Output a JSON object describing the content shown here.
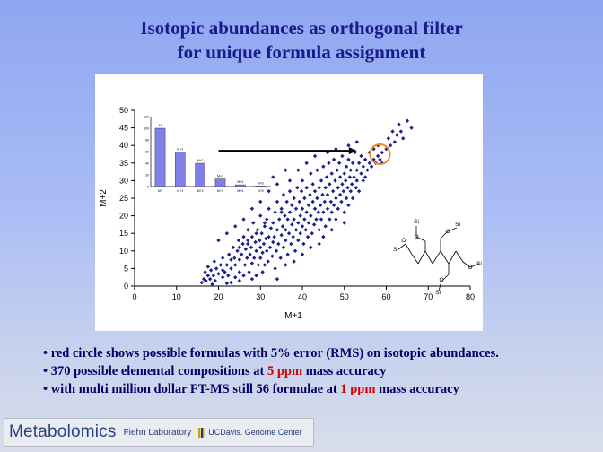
{
  "title": {
    "line1": "Isotopic abundances as orthogonal filter",
    "line2": "for unique formula assignment"
  },
  "chart_data": [
    {
      "type": "scatter",
      "xlabel": "M+1",
      "ylabel": "M+2",
      "xlim": [
        0,
        80
      ],
      "ylim": [
        0,
        50
      ],
      "xticks": [
        0,
        10,
        20,
        30,
        40,
        50,
        60,
        70,
        80
      ],
      "yticks": [
        0,
        5,
        10,
        15,
        20,
        25,
        30,
        35,
        40,
        45,
        50
      ],
      "grid": false,
      "marker_color": "#1f1f8c",
      "highlight": {
        "shape": "circle",
        "x": 58.5,
        "y": 37.5,
        "color": "#f08a24"
      },
      "arrow": {
        "from": [
          20,
          38.5
        ],
        "to": [
          53,
          38.5
        ],
        "color": "#000000"
      },
      "series": [
        {
          "values": [
            [
              16,
              1
            ],
            [
              16.5,
              2
            ],
            [
              17,
              1.5
            ],
            [
              17.5,
              3
            ],
            [
              18,
              2
            ],
            [
              16.8,
              4
            ],
            [
              17.5,
              5.5
            ],
            [
              18.2,
              4.5
            ],
            [
              18.8,
              3
            ],
            [
              19.2,
              1.5
            ],
            [
              19.5,
              5
            ],
            [
              20,
              3.5
            ],
            [
              20.5,
              6
            ],
            [
              21,
              2.5
            ],
            [
              21,
              8
            ],
            [
              21.5,
              4
            ],
            [
              22,
              6
            ],
            [
              22.3,
              3
            ],
            [
              22.5,
              9
            ],
            [
              23,
              5
            ],
            [
              23,
              7.5
            ],
            [
              23.5,
              11
            ],
            [
              23.8,
              8
            ],
            [
              24,
              2.5
            ],
            [
              24,
              6
            ],
            [
              24.5,
              10
            ],
            [
              24.8,
              13
            ],
            [
              25,
              4
            ],
            [
              25,
              7.5
            ],
            [
              25.5,
              9
            ],
            [
              25.8,
              12
            ],
            [
              26,
              3
            ],
            [
              26,
              14
            ],
            [
              26.3,
              6
            ],
            [
              26.5,
              10.5
            ],
            [
              26.8,
              8
            ],
            [
              27,
              12
            ],
            [
              27,
              16
            ],
            [
              27.3,
              4
            ],
            [
              27.5,
              9
            ],
            [
              27.8,
              11
            ],
            [
              28,
              6.5
            ],
            [
              28,
              14
            ],
            [
              28.3,
              18
            ],
            [
              28.5,
              8
            ],
            [
              28.8,
              12.5
            ],
            [
              29,
              3
            ],
            [
              29,
              10
            ],
            [
              29.3,
              16
            ],
            [
              29.5,
              6
            ],
            [
              29.8,
              13
            ],
            [
              30,
              8
            ],
            [
              30,
              11
            ],
            [
              30,
              20
            ],
            [
              30.3,
              15
            ],
            [
              30.5,
              4
            ],
            [
              30.5,
              9.5
            ],
            [
              30.8,
              12
            ],
            [
              31,
              6
            ],
            [
              31,
              17
            ],
            [
              31.3,
              13.5
            ],
            [
              31.5,
              10
            ],
            [
              31.5,
              19
            ],
            [
              31.8,
              7
            ],
            [
              32,
              14
            ],
            [
              32,
              22
            ],
            [
              32.3,
              11
            ],
            [
              32.5,
              16.5
            ],
            [
              32.8,
              8.5
            ],
            [
              33,
              12.5
            ],
            [
              33,
              18
            ],
            [
              33.3,
              14
            ],
            [
              33.5,
              21
            ],
            [
              33.5,
              5
            ],
            [
              33.8,
              10
            ],
            [
              34,
              16
            ],
            [
              34,
              24
            ],
            [
              34.3,
              12
            ],
            [
              34.5,
              19
            ],
            [
              34.8,
              8
            ],
            [
              35,
              14.5
            ],
            [
              35,
              22
            ],
            [
              35.3,
              17
            ],
            [
              35.5,
              11
            ],
            [
              35.5,
              26
            ],
            [
              35.8,
              20
            ],
            [
              36,
              13
            ],
            [
              36,
              16
            ],
            [
              36.3,
              24
            ],
            [
              36.5,
              9
            ],
            [
              36.5,
              19
            ],
            [
              36.8,
              15
            ],
            [
              37,
              21
            ],
            [
              37,
              27
            ],
            [
              37.3,
              12
            ],
            [
              37.5,
              17.5
            ],
            [
              37.5,
              23
            ],
            [
              37.8,
              14
            ],
            [
              38,
              19
            ],
            [
              38,
              25
            ],
            [
              38.3,
              10
            ],
            [
              38.5,
              16
            ],
            [
              38.5,
              22
            ],
            [
              38.8,
              28
            ],
            [
              39,
              13
            ],
            [
              39,
              18
            ],
            [
              39.3,
              24
            ],
            [
              39.5,
              20
            ],
            [
              39.5,
              15
            ],
            [
              39.8,
              27
            ],
            [
              40,
              17
            ],
            [
              40,
              22
            ],
            [
              40,
              30
            ],
            [
              40.3,
              12
            ],
            [
              40.5,
              19
            ],
            [
              40.5,
              25
            ],
            [
              40.8,
              16
            ],
            [
              41,
              21
            ],
            [
              41,
              28
            ],
            [
              41.3,
              14
            ],
            [
              41.5,
              23
            ],
            [
              41.5,
              18
            ],
            [
              41.8,
              26
            ],
            [
              42,
              20
            ],
            [
              42,
              32
            ],
            [
              42.3,
              15
            ],
            [
              42.5,
              24
            ],
            [
              42.5,
              29
            ],
            [
              42.8,
              17.5
            ],
            [
              43,
              22
            ],
            [
              43,
              27
            ],
            [
              43.3,
              19
            ],
            [
              43.5,
              33
            ],
            [
              43.5,
              25
            ],
            [
              43.8,
              21
            ],
            [
              44,
              16
            ],
            [
              44,
              28
            ],
            [
              44.3,
              23
            ],
            [
              44.5,
              30
            ],
            [
              44.5,
              19
            ],
            [
              44.8,
              26
            ],
            [
              45,
              21
            ],
            [
              45,
              34
            ],
            [
              45.3,
              24
            ],
            [
              45.5,
              28
            ],
            [
              45.5,
              17
            ],
            [
              45.8,
              31
            ],
            [
              46,
              22
            ],
            [
              46,
              26
            ],
            [
              46.3,
              35
            ],
            [
              46.5,
              19
            ],
            [
              46.5,
              29
            ],
            [
              46.8,
              24
            ],
            [
              47,
              32
            ],
            [
              47,
              21
            ],
            [
              47.3,
              27
            ],
            [
              47.5,
              36
            ],
            [
              47.5,
              23
            ],
            [
              47.8,
              30
            ],
            [
              48,
              25
            ],
            [
              48,
              19
            ],
            [
              48.3,
              33
            ],
            [
              48.5,
              28
            ],
            [
              48.5,
              22
            ],
            [
              48.8,
              35
            ],
            [
              49,
              26
            ],
            [
              49,
              31
            ],
            [
              49.3,
              24
            ],
            [
              49.5,
              29
            ],
            [
              49.5,
              37
            ],
            [
              49.8,
              27
            ],
            [
              50,
              32
            ],
            [
              50,
              21
            ],
            [
              50.3,
              30
            ],
            [
              50.5,
              25
            ],
            [
              50.5,
              34
            ],
            [
              50.8,
              28
            ],
            [
              51,
              36
            ],
            [
              51,
              23
            ],
            [
              51.3,
              31
            ],
            [
              51.5,
              27
            ],
            [
              51.5,
              33
            ],
            [
              51.8,
              29
            ],
            [
              52,
              35
            ],
            [
              52,
              25
            ],
            [
              52.3,
              31
            ],
            [
              52.5,
              38
            ],
            [
              52.8,
              28
            ],
            [
              53,
              33
            ],
            [
              53,
              30
            ],
            [
              53.5,
              35
            ],
            [
              53.5,
              27
            ],
            [
              54,
              32
            ],
            [
              54,
              37
            ],
            [
              54.5,
              30
            ],
            [
              54.5,
              34
            ],
            [
              55,
              36
            ],
            [
              55,
              31
            ],
            [
              55.5,
              33
            ],
            [
              56,
              35
            ],
            [
              56,
              38
            ],
            [
              56.5,
              34
            ],
            [
              57,
              36
            ],
            [
              57,
              39
            ],
            [
              57.5,
              35
            ],
            [
              58,
              37
            ],
            [
              58,
              40
            ],
            [
              58.5,
              36
            ],
            [
              59,
              38
            ],
            [
              59,
              35
            ],
            [
              60,
              39
            ],
            [
              60.5,
              42
            ],
            [
              61,
              40
            ],
            [
              61.5,
              44
            ],
            [
              62,
              41
            ],
            [
              62.5,
              43
            ],
            [
              63,
              46
            ],
            [
              63.5,
              44
            ],
            [
              64,
              42
            ],
            [
              65,
              47
            ],
            [
              66,
              45
            ],
            [
              40,
              9
            ],
            [
              38,
              7
            ],
            [
              42,
              11
            ],
            [
              45,
              14
            ],
            [
              47,
              16
            ],
            [
              36,
              6
            ],
            [
              50,
              18
            ],
            [
              34,
              2
            ],
            [
              44,
              12
            ],
            [
              26,
              19
            ],
            [
              28,
              22
            ],
            [
              30,
              24
            ],
            [
              32,
              27
            ],
            [
              34,
              29
            ],
            [
              24,
              17
            ],
            [
              22,
              15
            ],
            [
              20,
              13
            ],
            [
              33,
              31
            ],
            [
              36,
              33
            ],
            [
              25,
              11
            ],
            [
              27,
              13
            ],
            [
              29,
              15
            ],
            [
              31,
              18
            ],
            [
              35,
              21
            ],
            [
              37,
              30
            ],
            [
              39,
              33
            ],
            [
              41,
              35
            ],
            [
              43,
              37
            ],
            [
              46,
              38
            ],
            [
              48,
              39
            ],
            [
              51,
              40
            ],
            [
              53,
              41
            ],
            [
              23,
              1
            ],
            [
              21,
              4.5
            ],
            [
              19,
              7
            ],
            [
              18.5,
              0.5
            ],
            [
              22,
              0.8
            ],
            [
              25,
              1.5
            ],
            [
              28,
              2
            ]
          ]
        }
      ]
    },
    {
      "type": "bar",
      "categories": [
        "M+",
        "M+1",
        "M+2",
        "M+3",
        "M+4",
        "M+5"
      ],
      "values": [
        100,
        59,
        40,
        13,
        3,
        1
      ],
      "ylim": [
        0,
        120
      ],
      "yticks": [
        0,
        20,
        40,
        60,
        80,
        100,
        120
      ],
      "bar_color": "#8080e8",
      "labels": [
        "M",
        "M+1",
        "M+2",
        "M+3",
        "M+4",
        "M+5"
      ]
    }
  ],
  "bullets": [
    {
      "prefix": "• red circle shows possible formulas with 5% error (RMS) on isotopic abundances.",
      "highlight": "",
      "suffix": ""
    },
    {
      "prefix": "• 370 possible elemental compositions at ",
      "highlight": "5 ppm",
      "suffix": " mass accuracy"
    },
    {
      "prefix": "• with multi million dollar FT-MS still 56 formulae at ",
      "highlight": "1 ppm",
      "suffix": " mass accuracy"
    }
  ],
  "footer": {
    "brand": "Metabolomics",
    "lab": "Fiehn Laboratory",
    "ucd": "UCDavis. Genome Center"
  },
  "molecule": {
    "atom_labels": [
      "Si",
      "O",
      "Si",
      "O",
      "Si",
      "O",
      "Si",
      "O",
      "Si",
      "O"
    ]
  }
}
